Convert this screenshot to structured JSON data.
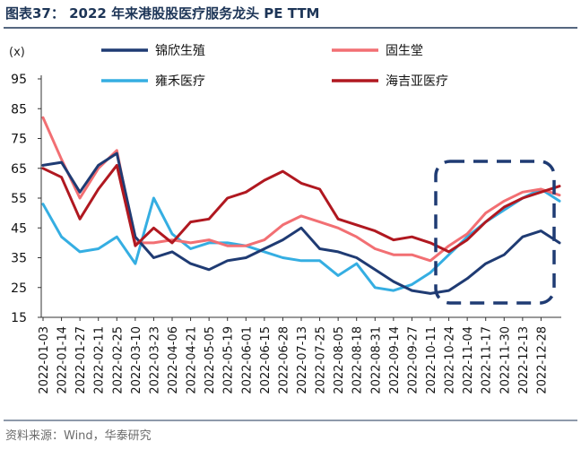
{
  "title": "图表37：  2022 年来港股股医疗服务龙头 PE TTM",
  "source": "资料来源：Wind，华泰研究",
  "chart_data": {
    "type": "line",
    "title": "图表37：  2022 年来港股股医疗服务龙头 PE TTM",
    "ylabel": "(x)",
    "ylim": [
      15,
      95
    ],
    "yticks": [
      15,
      25,
      35,
      45,
      55,
      65,
      75,
      85,
      95
    ],
    "x": [
      "2022-01-03",
      "2022-01-14",
      "2022-01-27",
      "2022-02-11",
      "2022-02-25",
      "2022-03-10",
      "2022-03-23",
      "2022-04-06",
      "2022-04-21",
      "2022-05-05",
      "2022-05-19",
      "2022-06-01",
      "2022-06-15",
      "2022-06-28",
      "2022-07-13",
      "2022-07-25",
      "2022-08-05",
      "2022-08-18",
      "2022-08-31",
      "2022-09-14",
      "2022-09-27",
      "2022-10-11",
      "2022-10-24",
      "2022-11-04",
      "2022-11-17",
      "2022-11-30",
      "2022-12-13",
      "2022-12-28",
      "2022-12-30"
    ],
    "legend_position": "top",
    "series": [
      {
        "name": "锦欣生殖",
        "color": "#1f3b73",
        "values": [
          66,
          67,
          57,
          66,
          70,
          42,
          35,
          37,
          33,
          31,
          34,
          35,
          38,
          41,
          45,
          38,
          37,
          35,
          31,
          27,
          24,
          23,
          24,
          28,
          33,
          36,
          42,
          44,
          40
        ]
      },
      {
        "name": "固生堂",
        "color": "#f26f73",
        "values": [
          82,
          68,
          55,
          65,
          71,
          40,
          40,
          41,
          40,
          41,
          39,
          39,
          41,
          46,
          49,
          47,
          45,
          42,
          38,
          36,
          36,
          34,
          39,
          43,
          50,
          54,
          57,
          58,
          56
        ]
      },
      {
        "name": "雍禾医疗",
        "color": "#35aee2",
        "values": [
          53,
          42,
          37,
          38,
          42,
          33,
          55,
          43,
          38,
          40,
          40,
          39,
          37,
          35,
          34,
          34,
          29,
          33,
          25,
          24,
          26,
          30,
          36,
          42,
          47,
          51,
          55,
          58,
          54
        ]
      },
      {
        "name": "海吉亚医疗",
        "color": "#b01820",
        "values": [
          65,
          62,
          48,
          58,
          66,
          39,
          45,
          40,
          47,
          48,
          55,
          57,
          61,
          64,
          60,
          58,
          48,
          46,
          44,
          41,
          42,
          40,
          37,
          41,
          47,
          52,
          55,
          57,
          59
        ]
      }
    ],
    "annotation": "dashed highlight box over 2022-10-11 to 2022-12-30"
  }
}
